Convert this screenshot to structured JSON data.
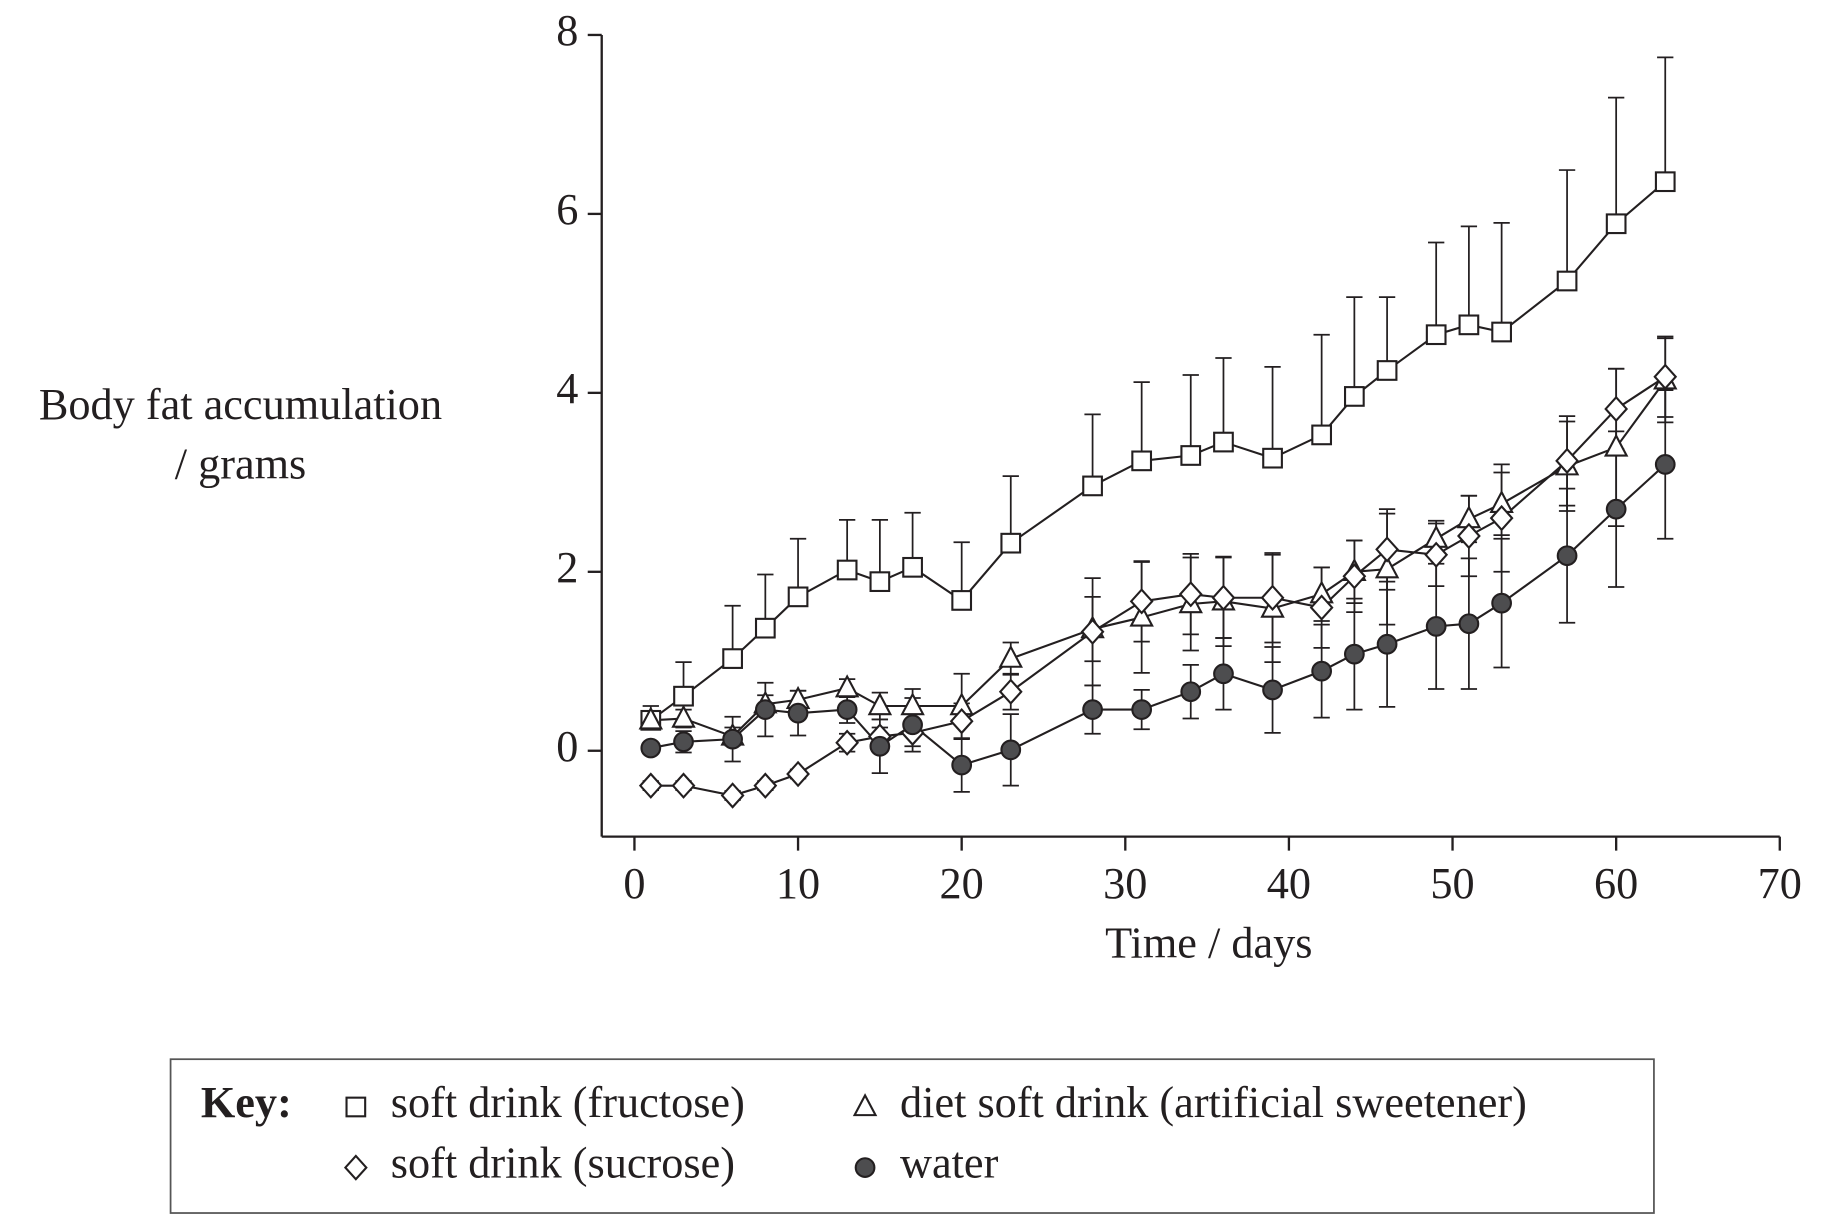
{
  "chart_data": {
    "type": "line",
    "ylabel": [
      "Body fat accumulation",
      "/ grams"
    ],
    "xlabel": "Time / days",
    "legend_title": "Key:",
    "x": [
      1,
      3,
      6,
      8,
      10,
      13,
      15,
      17,
      20,
      23,
      28,
      31,
      34,
      36,
      39,
      42,
      44,
      46,
      49,
      51,
      53,
      57,
      60,
      63
    ],
    "series": [
      {
        "name": "soft drink (fructose)",
        "marker": "square",
        "color": "#231f20",
        "fill": "#ffffff",
        "error_bars": "upper",
        "values": [
          0.34,
          0.61,
          1.03,
          1.37,
          1.72,
          2.02,
          1.89,
          2.05,
          1.68,
          2.32,
          2.96,
          3.24,
          3.3,
          3.45,
          3.27,
          3.53,
          3.96,
          4.25,
          4.65,
          4.76,
          4.68,
          5.25,
          5.89,
          6.36
        ],
        "errors": [
          0.16,
          0.38,
          0.59,
          0.6,
          0.65,
          0.56,
          0.69,
          0.61,
          0.65,
          0.75,
          0.8,
          0.88,
          0.9,
          0.94,
          1.02,
          1.12,
          1.11,
          0.82,
          1.03,
          1.1,
          1.22,
          1.24,
          1.41,
          1.39
        ]
      },
      {
        "name": "diet soft drink (artificial sweetener)",
        "marker": "triangle",
        "color": "#231f20",
        "fill": "#ffffff",
        "error_bars": "both",
        "values": [
          0.34,
          0.36,
          0.16,
          0.52,
          0.57,
          0.7,
          0.5,
          0.5,
          0.5,
          1.03,
          1.36,
          1.49,
          1.64,
          1.67,
          1.59,
          1.75,
          2.0,
          2.03,
          2.37,
          2.59,
          2.76,
          3.18,
          3.39,
          4.14
        ],
        "errors": [
          0.1,
          0.1,
          0.1,
          0.1,
          0.1,
          0.1,
          0.15,
          0.19,
          0.36,
          0.18,
          0.36,
          0.62,
          0.52,
          0.5,
          0.6,
          0.3,
          0.35,
          0.62,
          0.2,
          0.26,
          0.35,
          0.5,
          0.88,
          0.47
        ]
      },
      {
        "name": "soft drink (sucrose)",
        "marker": "diamond",
        "color": "#231f20",
        "fill": "#ffffff",
        "error_bars": "both",
        "values": [
          -0.39,
          -0.39,
          -0.5,
          -0.39,
          -0.26,
          0.09,
          0.16,
          0.2,
          0.33,
          0.66,
          1.33,
          1.67,
          1.75,
          1.71,
          1.71,
          1.6,
          1.95,
          2.25,
          2.19,
          2.4,
          2.6,
          3.24,
          3.82,
          4.18
        ],
        "errors": [
          0.05,
          0.05,
          0.05,
          0.05,
          0.05,
          0.1,
          0.1,
          0.15,
          0.2,
          0.2,
          0.6,
          0.45,
          0.45,
          0.45,
          0.5,
          0.45,
          0.4,
          0.45,
          0.35,
          0.45,
          0.6,
          0.5,
          0.45,
          0.45
        ]
      },
      {
        "name": "water",
        "marker": "circle",
        "color": "#231f20",
        "fill": "#4d4d4f",
        "error_bars": "both",
        "values": [
          0.03,
          0.1,
          0.13,
          0.46,
          0.42,
          0.46,
          0.05,
          0.29,
          -0.16,
          0.01,
          0.46,
          0.46,
          0.66,
          0.86,
          0.68,
          0.89,
          1.08,
          1.19,
          1.39,
          1.42,
          1.65,
          2.18,
          2.7,
          3.2
        ],
        "errors": [
          0.05,
          0.12,
          0.25,
          0.3,
          0.25,
          0.15,
          0.3,
          0.3,
          0.3,
          0.4,
          0.27,
          0.22,
          0.3,
          0.4,
          0.48,
          0.52,
          0.62,
          0.7,
          0.7,
          0.73,
          0.72,
          0.75,
          0.87,
          0.83
        ]
      }
    ],
    "xlim": [
      -2,
      70
    ],
    "xticks": [
      0,
      10,
      20,
      30,
      40,
      50,
      60,
      70
    ],
    "ylim": [
      -0.96,
      8
    ],
    "yticks": [
      0,
      2,
      4,
      6,
      8
    ]
  }
}
